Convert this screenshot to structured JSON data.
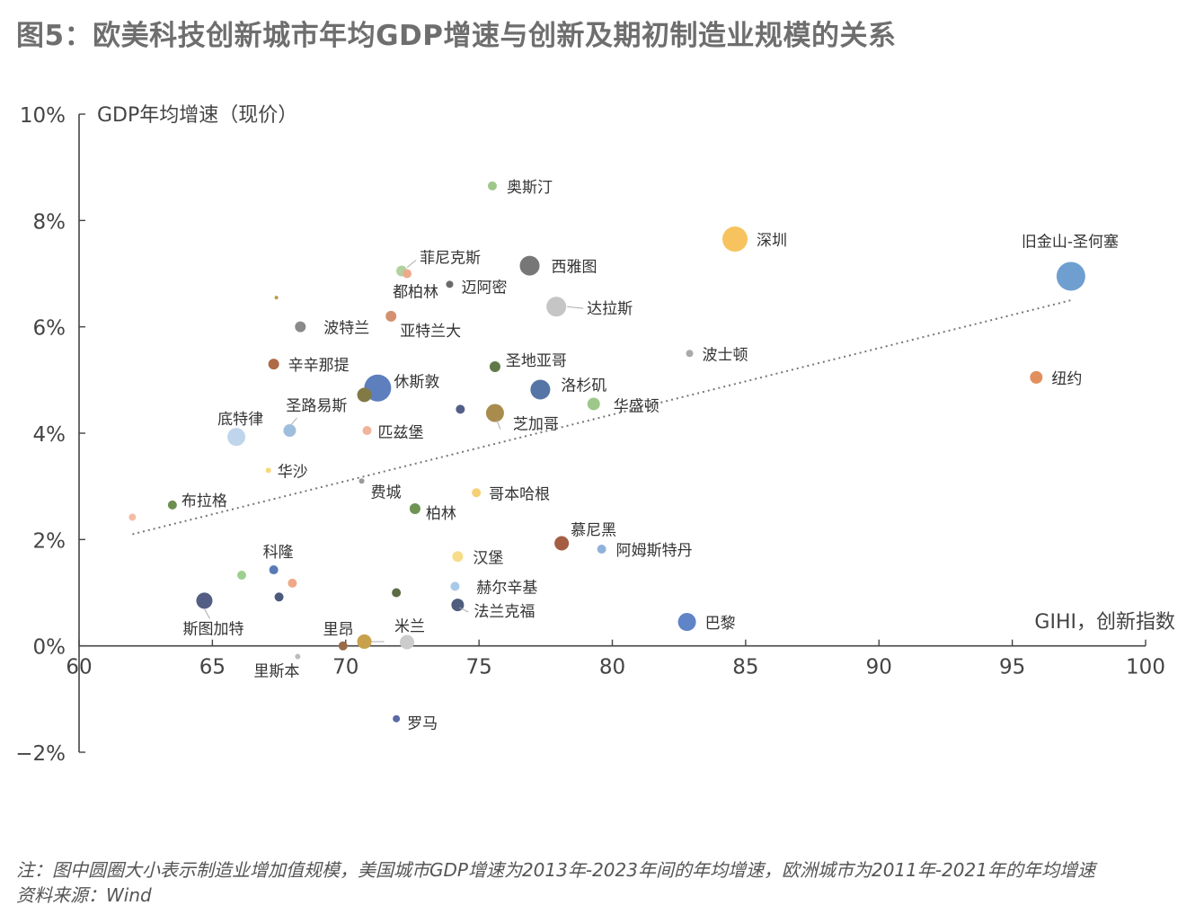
{
  "title": "图5：欧美科技创新城市年均GDP增速与创新及期初制造业规模的关系",
  "notes": {
    "line1": "注：图中圆圈大小表示制造业增加值规模，美国城市GDP增速为2013年-2023年间的年均增速，欧洲城市为2011年-2021年的年均增速",
    "line2": "资料来源：Wind"
  },
  "chart_data": {
    "type": "scatter",
    "title": "图5：欧美科技创新城市年均GDP增速与创新及期初制造业规模的关系",
    "xlabel": "GIHI，创新指数",
    "ylabel": "GDP年均增速（现价）",
    "xlim": [
      60,
      100
    ],
    "ylim": [
      -2,
      10
    ],
    "x_ticks": [
      "60",
      "65",
      "70",
      "75",
      "80",
      "85",
      "90",
      "95",
      "100"
    ],
    "y_ticks": [
      "−2%",
      "0%",
      "2%",
      "4%",
      "6%",
      "8%",
      "10%"
    ],
    "trendline": {
      "style": "dotted",
      "from": [
        62.0,
        2.1
      ],
      "to": [
        97.2,
        6.5
      ]
    },
    "points": [
      {
        "label": "奥斯汀",
        "x": 75.5,
        "y": 8.65,
        "size": 5,
        "color": "#9dc88a"
      },
      {
        "label": "深圳",
        "x": 84.6,
        "y": 7.65,
        "size": 14,
        "color": "#f6c35f"
      },
      {
        "label": "旧金山-圣何塞",
        "x": 97.2,
        "y": 6.95,
        "size": 16,
        "color": "#6f9fd1"
      },
      {
        "label": "西雅图",
        "x": 76.9,
        "y": 7.15,
        "size": 11,
        "color": "#777777"
      },
      {
        "label": "菲尼克斯",
        "x": 72.1,
        "y": 7.05,
        "size": 6,
        "color": "#b1d19f"
      },
      {
        "label": "",
        "x": 72.3,
        "y": 7.0,
        "size": 5,
        "color": "#eea98d"
      },
      {
        "label": "都柏林",
        "x": 72.1,
        "y": 7.0,
        "size": 0,
        "color": "#b1d19f"
      },
      {
        "label": "迈阿密",
        "x": 73.9,
        "y": 6.8,
        "size": 4,
        "color": "#6a6a6a"
      },
      {
        "label": "达拉斯",
        "x": 77.9,
        "y": 6.38,
        "size": 11,
        "color": "#c5c5c5"
      },
      {
        "label": "",
        "x": 67.4,
        "y": 6.55,
        "size": 2,
        "color": "#b89a49"
      },
      {
        "label": "波特兰",
        "x": 68.3,
        "y": 6.0,
        "size": 6,
        "color": "#8a8a8a"
      },
      {
        "label": "亚特兰大",
        "x": 71.7,
        "y": 6.2,
        "size": 6,
        "color": "#d4916f"
      },
      {
        "label": "波士顿",
        "x": 82.9,
        "y": 5.5,
        "size": 4,
        "color": "#aaaaaa"
      },
      {
        "label": "纽约",
        "x": 95.9,
        "y": 5.05,
        "size": 7,
        "color": "#e28f5f"
      },
      {
        "label": "辛辛那提",
        "x": 67.3,
        "y": 5.3,
        "size": 6,
        "color": "#b06a45"
      },
      {
        "label": "圣地亚哥",
        "x": 75.6,
        "y": 5.25,
        "size": 6,
        "color": "#5f7a48"
      },
      {
        "label": "休斯敦",
        "x": 71.2,
        "y": 4.85,
        "size": 15,
        "color": "#5e7fbd"
      },
      {
        "label": "",
        "x": 70.7,
        "y": 4.72,
        "size": 8,
        "color": "#827a45"
      },
      {
        "label": "洛杉矶",
        "x": 77.3,
        "y": 4.82,
        "size": 11,
        "color": "#5575a6"
      },
      {
        "label": "华盛顿",
        "x": 79.3,
        "y": 4.55,
        "size": 7,
        "color": "#9dc88a"
      },
      {
        "label": "",
        "x": 74.3,
        "y": 4.45,
        "size": 5,
        "color": "#535e88"
      },
      {
        "label": "芝加哥",
        "x": 75.6,
        "y": 4.38,
        "size": 10,
        "color": "#a98b4d"
      },
      {
        "label": "圣路易斯",
        "x": 67.9,
        "y": 4.05,
        "size": 7,
        "color": "#9fbedc"
      },
      {
        "label": "匹兹堡",
        "x": 70.8,
        "y": 4.05,
        "size": 5,
        "color": "#f0b49c"
      },
      {
        "label": "底特律",
        "x": 65.9,
        "y": 3.93,
        "size": 10,
        "color": "#bfd5ec"
      },
      {
        "label": "华沙",
        "x": 67.1,
        "y": 3.3,
        "size": 3,
        "color": "#f6d77a"
      },
      {
        "label": "费城",
        "x": 70.6,
        "y": 3.1,
        "size": 3,
        "color": "#9a9a9a"
      },
      {
        "label": "哥本哈根",
        "x": 74.9,
        "y": 2.88,
        "size": 5,
        "color": "#f6cf72"
      },
      {
        "label": "布拉格",
        "x": 63.5,
        "y": 2.65,
        "size": 5,
        "color": "#6d8e4e"
      },
      {
        "label": "",
        "x": 62.0,
        "y": 2.42,
        "size": 4,
        "color": "#f3bda5"
      },
      {
        "label": "柏林",
        "x": 72.6,
        "y": 2.58,
        "size": 6,
        "color": "#6d9453"
      },
      {
        "label": "慕尼黑",
        "x": 78.1,
        "y": 1.93,
        "size": 8,
        "color": "#a55d43"
      },
      {
        "label": "阿姆斯特丹",
        "x": 79.6,
        "y": 1.82,
        "size": 5,
        "color": "#8fb2da"
      },
      {
        "label": "汉堡",
        "x": 74.2,
        "y": 1.68,
        "size": 6,
        "color": "#f8dc8a"
      },
      {
        "label": "科隆",
        "x": 67.3,
        "y": 1.43,
        "size": 5,
        "color": "#587bb5"
      },
      {
        "label": "",
        "x": 66.1,
        "y": 1.33,
        "size": 5,
        "color": "#9dd08e"
      },
      {
        "label": "",
        "x": 68.0,
        "y": 1.18,
        "size": 5,
        "color": "#f0a888"
      },
      {
        "label": "赫尔辛基",
        "x": 74.1,
        "y": 1.12,
        "size": 5,
        "color": "#a9c9e8"
      },
      {
        "label": "",
        "x": 71.9,
        "y": 1.0,
        "size": 5,
        "color": "#5e6b45"
      },
      {
        "label": "",
        "x": 67.5,
        "y": 0.92,
        "size": 5,
        "color": "#4c5a7e"
      },
      {
        "label": "斯图加特",
        "x": 64.7,
        "y": 0.85,
        "size": 9,
        "color": "#545e84"
      },
      {
        "label": "法兰克福",
        "x": 74.2,
        "y": 0.77,
        "size": 7,
        "color": "#4f5d7e"
      },
      {
        "label": "巴黎",
        "x": 82.8,
        "y": 0.45,
        "size": 10,
        "color": "#5f84c7"
      },
      {
        "label": "米兰",
        "x": 72.3,
        "y": 0.07,
        "size": 8,
        "color": "#cccccc"
      },
      {
        "label": "里昂",
        "x": 70.7,
        "y": 0.08,
        "size": 8,
        "color": "#c9a04b"
      },
      {
        "label": "",
        "x": 69.9,
        "y": 0.0,
        "size": 5,
        "color": "#9b6a48"
      },
      {
        "label": "里斯本",
        "x": 68.2,
        "y": -0.2,
        "size": 3,
        "color": "#bcbcbc"
      },
      {
        "label": "罗马",
        "x": 71.9,
        "y": -1.37,
        "size": 4,
        "color": "#5a6aa5"
      }
    ]
  }
}
